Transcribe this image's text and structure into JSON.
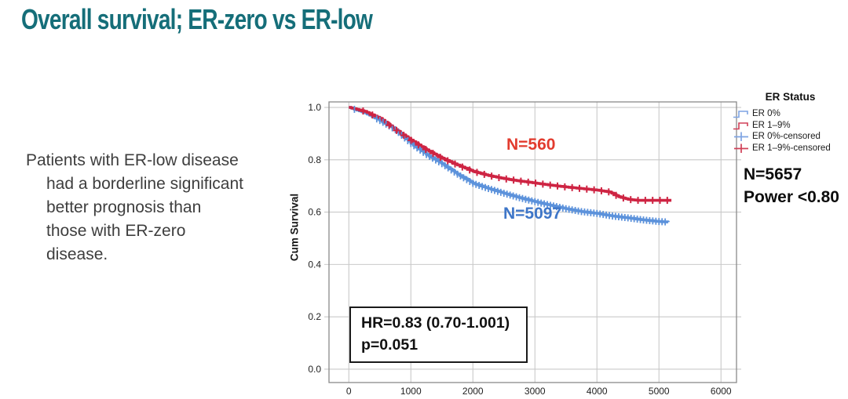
{
  "title": "Overall survival; ER-zero vs ER-low",
  "note": {
    "lines": [
      "Patients with ER-low disease",
      "had a borderline significant",
      "better prognosis than",
      "those with ER-zero",
      "disease."
    ]
  },
  "chart_data": {
    "type": "line",
    "subtype": "kaplan-meier-step",
    "title": "",
    "xlabel": "",
    "ylabel": "Cum Survival",
    "xlim": [
      -320,
      6250
    ],
    "ylim": [
      -0.051,
      1.021
    ],
    "x_ticks": [
      0,
      1000,
      2000,
      3000,
      4000,
      5000,
      6000
    ],
    "y_ticks": [
      0.0,
      0.2,
      0.4,
      0.6,
      0.8,
      1.0
    ],
    "grid": true,
    "legend_position": "right",
    "series": [
      {
        "name": "ER 0%",
        "n": 5097,
        "color": "#5C92DB",
        "points": [
          [
            0,
            1.0
          ],
          [
            250,
            0.98
          ],
          [
            500,
            0.95
          ],
          [
            750,
            0.915
          ],
          [
            1000,
            0.862
          ],
          [
            1250,
            0.82
          ],
          [
            1500,
            0.785
          ],
          [
            1750,
            0.745
          ],
          [
            2000,
            0.71
          ],
          [
            2250,
            0.69
          ],
          [
            2500,
            0.672
          ],
          [
            2750,
            0.655
          ],
          [
            3000,
            0.64
          ],
          [
            3250,
            0.626
          ],
          [
            3500,
            0.613
          ],
          [
            3750,
            0.602
          ],
          [
            4000,
            0.595
          ],
          [
            4250,
            0.585
          ],
          [
            4500,
            0.578
          ],
          [
            4750,
            0.57
          ],
          [
            5000,
            0.564
          ],
          [
            5150,
            0.562
          ]
        ],
        "censor_marks": {
          "start": 450,
          "end": 5140,
          "step": 50,
          "extra": [
            90
          ]
        }
      },
      {
        "name": "ER 1–9%",
        "n": 560,
        "color": "#CE2443",
        "points": [
          [
            0,
            1.0
          ],
          [
            250,
            0.985
          ],
          [
            500,
            0.958
          ],
          [
            750,
            0.915
          ],
          [
            1000,
            0.875
          ],
          [
            1250,
            0.838
          ],
          [
            1500,
            0.806
          ],
          [
            1750,
            0.78
          ],
          [
            2000,
            0.756
          ],
          [
            2250,
            0.74
          ],
          [
            2500,
            0.728
          ],
          [
            2750,
            0.719
          ],
          [
            3000,
            0.711
          ],
          [
            3250,
            0.703
          ],
          [
            3500,
            0.696
          ],
          [
            3750,
            0.69
          ],
          [
            4000,
            0.684
          ],
          [
            4200,
            0.677
          ],
          [
            4350,
            0.659
          ],
          [
            4500,
            0.649
          ],
          [
            4650,
            0.645
          ],
          [
            5200,
            0.645
          ]
        ],
        "censor_marks": {
          "start": 650,
          "end": 5150,
          "step": 118,
          "extra": [
            230,
            380
          ]
        }
      }
    ],
    "annotations": {
      "er_low_n": "N=560",
      "er_zero_n": "N=5097",
      "hr_line1": "HR=0.83 (0.70-1.001)",
      "hr_line2": "p=0.051"
    }
  },
  "legend": {
    "title": "ER Status",
    "items": [
      {
        "label": "ER 0%",
        "color": "#7FA4E3",
        "glyph": "step"
      },
      {
        "label": "ER 1–9%",
        "color": "#D04058",
        "glyph": "step"
      },
      {
        "label": "ER 0%-censored",
        "color": "#7FA4E3",
        "glyph": "plus"
      },
      {
        "label": "ER 1–9%-censored",
        "color": "#D04058",
        "glyph": "plus"
      }
    ],
    "n_total": "N=5657",
    "power": "Power <0.80"
  },
  "colors": {
    "title_teal": "#156E79",
    "annotation_red": "#E23B2E",
    "annotation_blue": "#3E76C8",
    "gridline": "#c9c9c9",
    "plot_border": "#8a8a8a",
    "tick_text": "#1f1f1f"
  }
}
